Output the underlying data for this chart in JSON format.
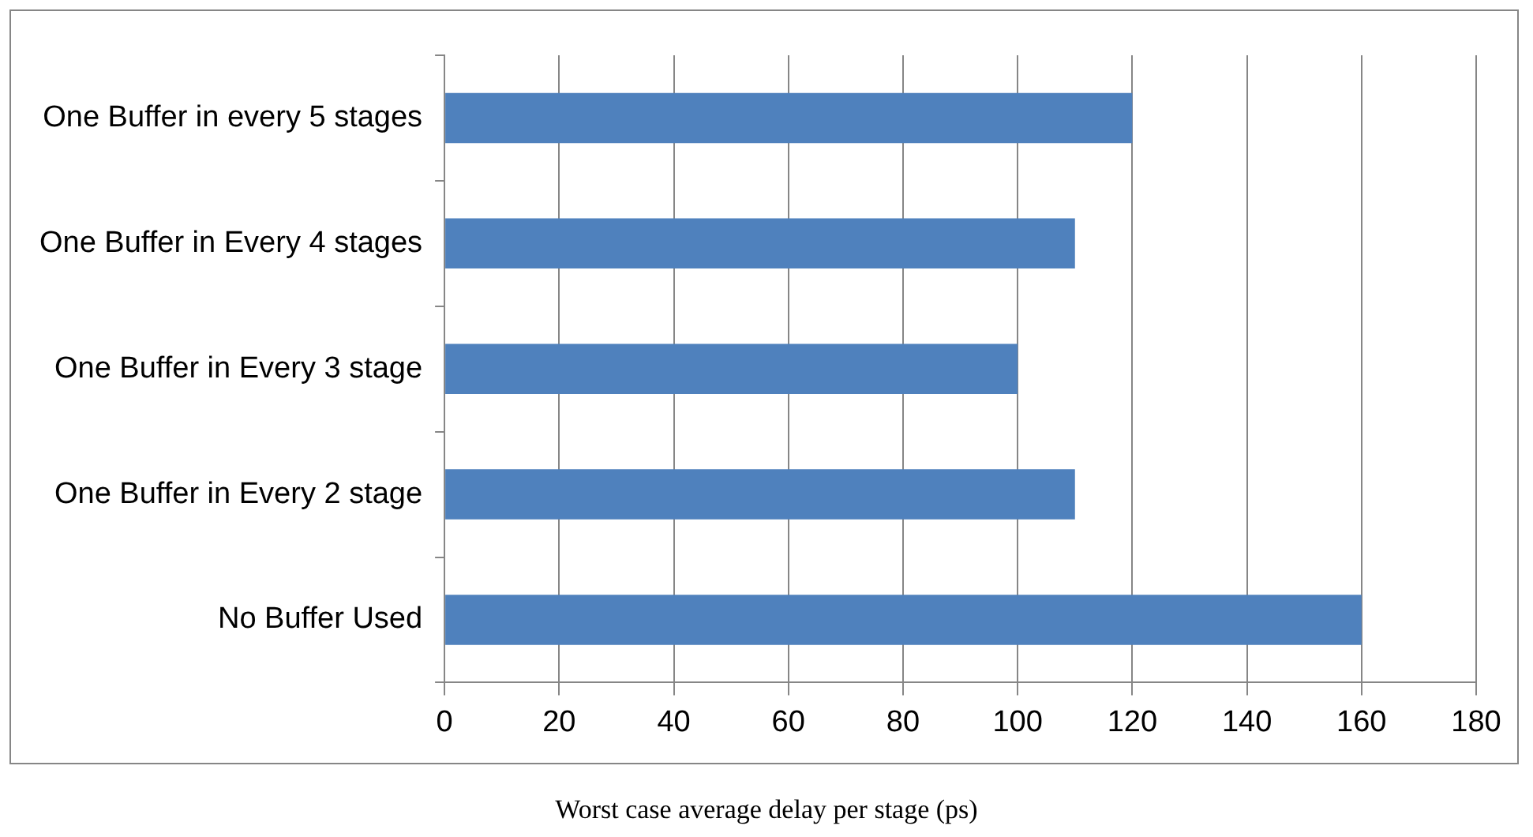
{
  "chart_data": {
    "type": "bar",
    "orientation": "horizontal",
    "xlabel": "Worst case average delay per stage (ps)",
    "categories": [
      "One Buffer in every 5 stages",
      "One Buffer in Every 4 stages",
      "One Buffer in Every 3 stage",
      "One Buffer in Every 2 stage",
      "No Buffer Used"
    ],
    "values": [
      120,
      110,
      100,
      110,
      160
    ],
    "color": "#4f81bd",
    "xlim": [
      0,
      180
    ],
    "xticks": [
      0,
      20,
      40,
      60,
      80,
      100,
      120,
      140,
      160,
      180
    ],
    "grid": "x",
    "legend": false
  }
}
